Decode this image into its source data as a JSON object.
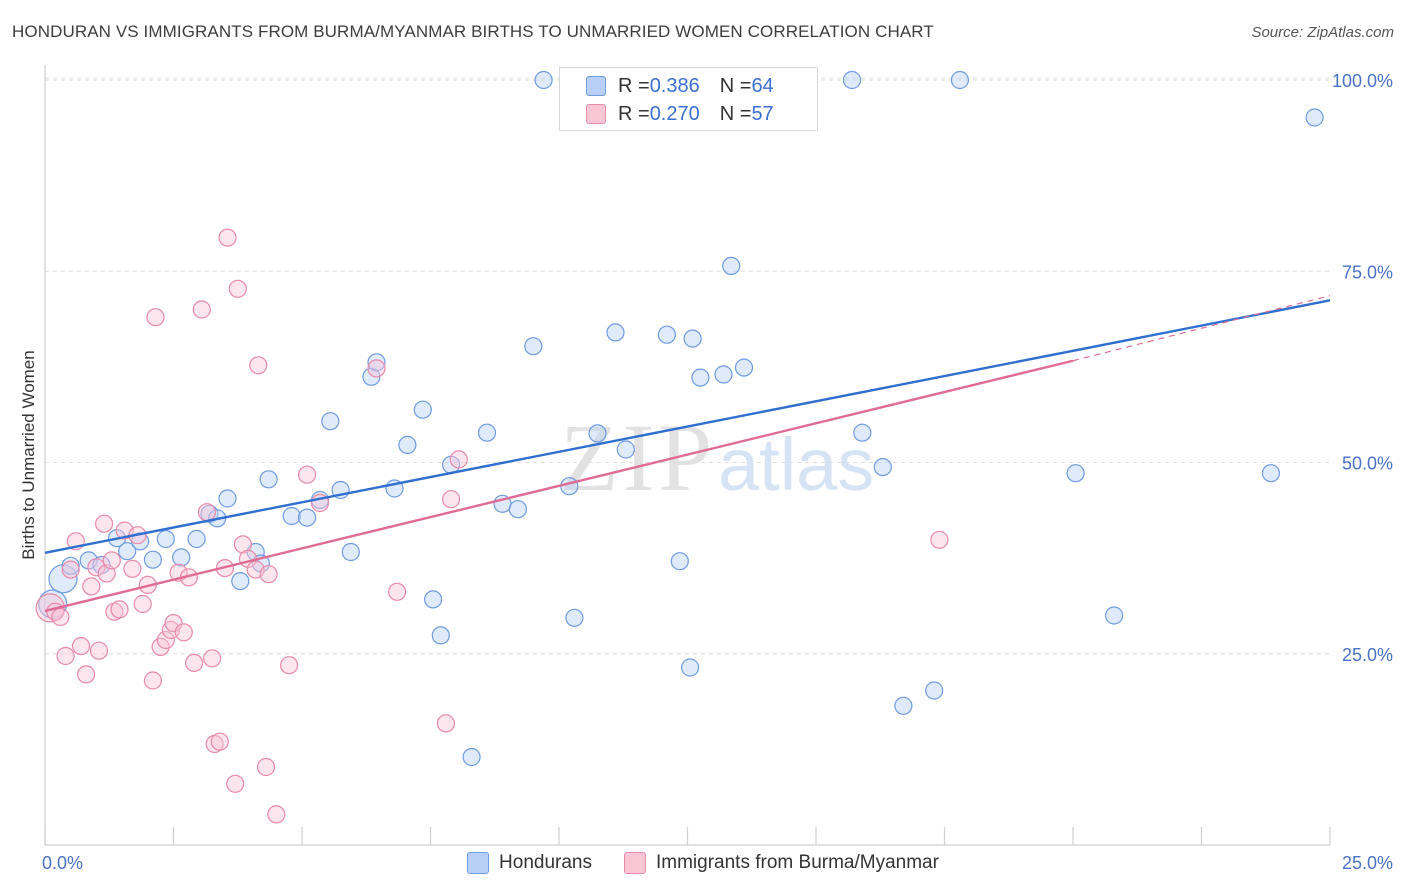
{
  "title": "HONDURAN VS IMMIGRANTS FROM BURMA/MYANMAR BIRTHS TO UNMARRIED WOMEN CORRELATION CHART",
  "source": "Source: ZipAtlas.com",
  "watermark": {
    "zip": "ZIP",
    "atlas": "atlas"
  },
  "legend_top": [
    {
      "r_label": "R = ",
      "r_value": "0.386",
      "n_label": "N = ",
      "n_value": "64"
    },
    {
      "r_label": "R = ",
      "r_value": "0.270",
      "n_label": "N = ",
      "n_value": "57"
    }
  ],
  "chart_data": {
    "type": "scatter",
    "title": "HONDURAN VS IMMIGRANTS FROM BURMA/MYANMAR BIRTHS TO UNMARRIED WOMEN CORRELATION CHART",
    "xlabel": "",
    "ylabel": "Births to Unmarried Women",
    "xlim": [
      0,
      25
    ],
    "ylim": [
      0,
      104
    ],
    "x_tick_labels": [
      "0.0%",
      "25.0%"
    ],
    "y_ticks": [
      25,
      50,
      75,
      100
    ],
    "y_tick_labels": [
      "25.0%",
      "50.0%",
      "75.0%",
      "100.0%"
    ],
    "grid": true,
    "legend_position": "top-center",
    "colors": {
      "blue": "#6f9be0",
      "blue_line": "#2f6fcf",
      "pink": "#e88aa8",
      "pink_line": "#e06b95"
    },
    "series": [
      {
        "name": "Hondurans",
        "color": "blue",
        "r": 0.386,
        "n": 64,
        "trend": {
          "x0": 0,
          "y0": 38.2,
          "x1": 25,
          "y1": 71.2
        },
        "points": [
          [
            0.15,
            31.5
          ],
          [
            0.35,
            34.8
          ],
          [
            0.5,
            36.5
          ],
          [
            0.85,
            37.2
          ],
          [
            1.1,
            36.6
          ],
          [
            1.4,
            40.1
          ],
          [
            1.6,
            38.4
          ],
          [
            1.85,
            39.7
          ],
          [
            2.1,
            37.3
          ],
          [
            2.35,
            40.0
          ],
          [
            2.65,
            37.6
          ],
          [
            2.95,
            40.0
          ],
          [
            3.2,
            43.3
          ],
          [
            3.35,
            42.7
          ],
          [
            3.55,
            45.3
          ],
          [
            3.8,
            34.5
          ],
          [
            4.1,
            38.3
          ],
          [
            4.2,
            36.8
          ],
          [
            4.35,
            47.8
          ],
          [
            4.8,
            43.0
          ],
          [
            5.1,
            42.8
          ],
          [
            5.35,
            45.1
          ],
          [
            5.55,
            55.4
          ],
          [
            5.75,
            46.4
          ],
          [
            5.95,
            38.3
          ],
          [
            6.35,
            61.2
          ],
          [
            6.45,
            63.1
          ],
          [
            6.8,
            46.6
          ],
          [
            7.05,
            52.3
          ],
          [
            7.35,
            56.9
          ],
          [
            7.55,
            32.1
          ],
          [
            7.7,
            27.4
          ],
          [
            7.9,
            49.7
          ],
          [
            8.3,
            11.5
          ],
          [
            8.6,
            53.9
          ],
          [
            8.9,
            44.6
          ],
          [
            9.2,
            43.9
          ],
          [
            9.5,
            65.2
          ],
          [
            9.7,
            100.0
          ],
          [
            10.2,
            46.9
          ],
          [
            10.2,
            100.0
          ],
          [
            10.3,
            29.7
          ],
          [
            10.75,
            53.8
          ],
          [
            11.1,
            67.0
          ],
          [
            11.3,
            51.7
          ],
          [
            11.8,
            100.0
          ],
          [
            12.1,
            66.7
          ],
          [
            12.35,
            37.1
          ],
          [
            12.55,
            23.2
          ],
          [
            12.6,
            66.2
          ],
          [
            12.75,
            61.1
          ],
          [
            13.2,
            61.5
          ],
          [
            13.6,
            62.4
          ],
          [
            13.35,
            75.7
          ],
          [
            15.7,
            100.0
          ],
          [
            15.9,
            53.9
          ],
          [
            16.3,
            49.4
          ],
          [
            16.7,
            18.2
          ],
          [
            17.3,
            20.2
          ],
          [
            17.8,
            100.0
          ],
          [
            20.05,
            48.6
          ],
          [
            20.8,
            30.0
          ],
          [
            23.85,
            48.6
          ],
          [
            24.7,
            95.1
          ]
        ]
      },
      {
        "name": "Immigrants from Burma/Myanmar",
        "color": "pink",
        "r": 0.27,
        "n": 57,
        "trend": {
          "x0": 0,
          "y0": 30.6,
          "x1": 20.0,
          "y1": 63.3
        },
        "trend_extension": {
          "x0": 20.0,
          "y0": 63.3,
          "x1": 25,
          "y1": 71.8
        },
        "points": [
          [
            0.1,
            31.0
          ],
          [
            0.2,
            30.5
          ],
          [
            0.3,
            29.8
          ],
          [
            0.4,
            24.7
          ],
          [
            0.5,
            36.0
          ],
          [
            0.6,
            39.7
          ],
          [
            0.7,
            26.0
          ],
          [
            0.8,
            22.3
          ],
          [
            0.9,
            33.8
          ],
          [
            1.0,
            36.3
          ],
          [
            1.05,
            25.4
          ],
          [
            1.15,
            42.0
          ],
          [
            1.2,
            35.5
          ],
          [
            1.3,
            37.2
          ],
          [
            1.35,
            30.5
          ],
          [
            1.45,
            30.8
          ],
          [
            1.55,
            41.1
          ],
          [
            1.7,
            36.1
          ],
          [
            1.8,
            40.5
          ],
          [
            1.9,
            31.5
          ],
          [
            2.0,
            34.0
          ],
          [
            2.1,
            21.5
          ],
          [
            2.15,
            69.0
          ],
          [
            2.25,
            25.9
          ],
          [
            2.35,
            26.8
          ],
          [
            2.45,
            28.1
          ],
          [
            2.5,
            29.0
          ],
          [
            2.6,
            35.6
          ],
          [
            2.7,
            27.8
          ],
          [
            2.8,
            35.0
          ],
          [
            2.9,
            23.8
          ],
          [
            3.05,
            70.0
          ],
          [
            3.15,
            43.5
          ],
          [
            3.25,
            24.4
          ],
          [
            3.3,
            13.2
          ],
          [
            3.4,
            13.5
          ],
          [
            3.5,
            36.2
          ],
          [
            3.55,
            79.4
          ],
          [
            3.7,
            8.0
          ],
          [
            3.75,
            72.7
          ],
          [
            3.85,
            39.3
          ],
          [
            3.95,
            37.4
          ],
          [
            4.1,
            36.0
          ],
          [
            4.15,
            62.7
          ],
          [
            4.3,
            10.2
          ],
          [
            4.35,
            35.4
          ],
          [
            4.5,
            4.0
          ],
          [
            4.75,
            23.5
          ],
          [
            5.1,
            48.4
          ],
          [
            5.35,
            44.7
          ],
          [
            6.45,
            62.3
          ],
          [
            6.85,
            33.1
          ],
          [
            7.8,
            15.9
          ],
          [
            7.9,
            45.2
          ],
          [
            11.3,
            100.0
          ],
          [
            17.4,
            39.9
          ],
          [
            8.05,
            50.4
          ]
        ]
      }
    ]
  },
  "legend_bottom": [
    {
      "label": "Hondurans"
    },
    {
      "label": "Immigrants from Burma/Myanmar"
    }
  ]
}
